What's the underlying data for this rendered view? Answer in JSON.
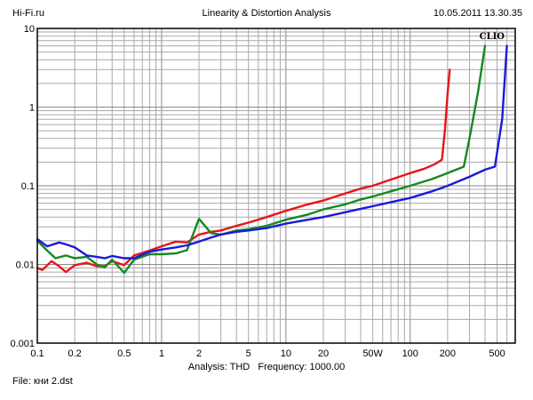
{
  "header": {
    "site": "Hi-Fi.ru",
    "title": "Linearity & Distortion Analysis",
    "datetime": "10.05.2011 13.30.35"
  },
  "brand": "CLIO",
  "footer": {
    "analysis_label": "Analysis:",
    "analysis_value": "THD",
    "frequency_label": "Frequency:",
    "frequency_value": "1000.00",
    "file_label": "File:",
    "file_name": "кни 2.dst"
  },
  "chart_data": {
    "type": "line",
    "x_scale": "log",
    "y_scale": "log",
    "xlim": [
      0.1,
      700
    ],
    "ylim": [
      0.001,
      10
    ],
    "grid": true,
    "x_ticks": [
      {
        "value": 0.1,
        "label": "0.1"
      },
      {
        "value": 0.2,
        "label": "0.2"
      },
      {
        "value": 0.5,
        "label": "0.5"
      },
      {
        "value": 1,
        "label": "1"
      },
      {
        "value": 2,
        "label": "2"
      },
      {
        "value": 5,
        "label": "5"
      },
      {
        "value": 10,
        "label": "10"
      },
      {
        "value": 20,
        "label": "20"
      },
      {
        "value": 50,
        "label": "50W"
      },
      {
        "value": 100,
        "label": "100"
      },
      {
        "value": 200,
        "label": "200"
      },
      {
        "value": 500,
        "label": "500"
      }
    ],
    "y_ticks": [
      {
        "value": 0.001,
        "label": "0.001"
      },
      {
        "value": 0.01,
        "label": "0.01"
      },
      {
        "value": 0.1,
        "label": "0.1"
      },
      {
        "value": 1,
        "label": "1"
      },
      {
        "value": 10,
        "label": "10"
      }
    ],
    "series": [
      {
        "color": "#e8141a",
        "points": [
          [
            0.1,
            0.009
          ],
          [
            0.11,
            0.0085
          ],
          [
            0.13,
            0.011
          ],
          [
            0.15,
            0.0095
          ],
          [
            0.17,
            0.008
          ],
          [
            0.2,
            0.0098
          ],
          [
            0.25,
            0.0105
          ],
          [
            0.3,
            0.0095
          ],
          [
            0.35,
            0.0095
          ],
          [
            0.4,
            0.011
          ],
          [
            0.5,
            0.0098
          ],
          [
            0.6,
            0.013
          ],
          [
            0.8,
            0.015
          ],
          [
            1,
            0.017
          ],
          [
            1.3,
            0.0195
          ],
          [
            1.6,
            0.019
          ],
          [
            2,
            0.024
          ],
          [
            2.5,
            0.026
          ],
          [
            3,
            0.027
          ],
          [
            4,
            0.031
          ],
          [
            5,
            0.034
          ],
          [
            7,
            0.04
          ],
          [
            10,
            0.048
          ],
          [
            15,
            0.058
          ],
          [
            20,
            0.065
          ],
          [
            30,
            0.08
          ],
          [
            40,
            0.092
          ],
          [
            50,
            0.1
          ],
          [
            70,
            0.12
          ],
          [
            100,
            0.145
          ],
          [
            130,
            0.165
          ],
          [
            160,
            0.19
          ],
          [
            180,
            0.215
          ],
          [
            190,
            0.5
          ],
          [
            200,
            1.5
          ],
          [
            208,
            3.0
          ]
        ]
      },
      {
        "color": "#138a1f",
        "points": [
          [
            0.1,
            0.02
          ],
          [
            0.12,
            0.015
          ],
          [
            0.14,
            0.012
          ],
          [
            0.17,
            0.013
          ],
          [
            0.2,
            0.012
          ],
          [
            0.25,
            0.0125
          ],
          [
            0.3,
            0.01
          ],
          [
            0.35,
            0.0092
          ],
          [
            0.4,
            0.0115
          ],
          [
            0.5,
            0.0078
          ],
          [
            0.6,
            0.0115
          ],
          [
            0.8,
            0.0135
          ],
          [
            1,
            0.0135
          ],
          [
            1.3,
            0.0138
          ],
          [
            1.6,
            0.0152
          ],
          [
            2,
            0.038
          ],
          [
            2.5,
            0.025
          ],
          [
            3,
            0.024
          ],
          [
            4,
            0.027
          ],
          [
            5,
            0.028
          ],
          [
            7,
            0.031
          ],
          [
            10,
            0.037
          ],
          [
            15,
            0.043
          ],
          [
            20,
            0.05
          ],
          [
            30,
            0.058
          ],
          [
            40,
            0.067
          ],
          [
            50,
            0.073
          ],
          [
            70,
            0.085
          ],
          [
            100,
            0.1
          ],
          [
            150,
            0.122
          ],
          [
            200,
            0.145
          ],
          [
            270,
            0.175
          ],
          [
            300,
            0.4
          ],
          [
            350,
            1.5
          ],
          [
            400,
            6.0
          ]
        ]
      },
      {
        "color": "#1a1adb",
        "points": [
          [
            0.1,
            0.021
          ],
          [
            0.12,
            0.017
          ],
          [
            0.15,
            0.019
          ],
          [
            0.17,
            0.018
          ],
          [
            0.2,
            0.0165
          ],
          [
            0.25,
            0.013
          ],
          [
            0.3,
            0.0125
          ],
          [
            0.35,
            0.012
          ],
          [
            0.4,
            0.0128
          ],
          [
            0.5,
            0.012
          ],
          [
            0.6,
            0.012
          ],
          [
            0.8,
            0.0145
          ],
          [
            1,
            0.0155
          ],
          [
            1.3,
            0.0165
          ],
          [
            1.6,
            0.0175
          ],
          [
            2,
            0.0195
          ],
          [
            2.5,
            0.022
          ],
          [
            3,
            0.024
          ],
          [
            4,
            0.026
          ],
          [
            5,
            0.027
          ],
          [
            7,
            0.029
          ],
          [
            10,
            0.033
          ],
          [
            15,
            0.037
          ],
          [
            20,
            0.04
          ],
          [
            30,
            0.046
          ],
          [
            40,
            0.051
          ],
          [
            50,
            0.055
          ],
          [
            70,
            0.062
          ],
          [
            100,
            0.07
          ],
          [
            150,
            0.085
          ],
          [
            200,
            0.1
          ],
          [
            300,
            0.13
          ],
          [
            400,
            0.16
          ],
          [
            480,
            0.175
          ],
          [
            550,
            0.7
          ],
          [
            600,
            6.0
          ]
        ]
      }
    ]
  }
}
